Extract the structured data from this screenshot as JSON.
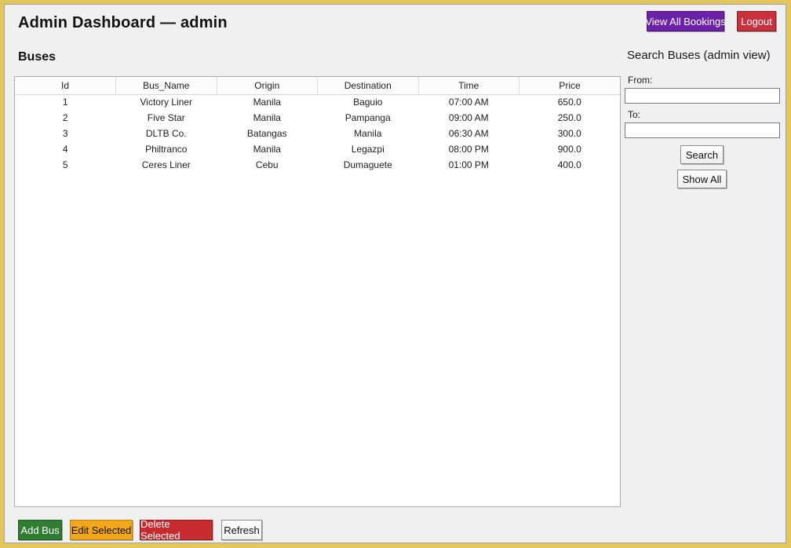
{
  "header": {
    "title": "Admin Dashboard — admin",
    "view_all_bookings_label": "View All Bookings",
    "logout_label": "Logout"
  },
  "main": {
    "section_title": "Buses",
    "table": {
      "columns": [
        "Id",
        "Bus_Name",
        "Origin",
        "Destination",
        "Time",
        "Price"
      ],
      "rows": [
        [
          "1",
          "Victory Liner",
          "Manila",
          "Baguio",
          "07:00 AM",
          "650.0"
        ],
        [
          "2",
          "Five Star",
          "Manila",
          "Pampanga",
          "09:00 AM",
          "250.0"
        ],
        [
          "3",
          "DLTB Co.",
          "Batangas",
          "Manila",
          "06:30 AM",
          "300.0"
        ],
        [
          "4",
          "Philtranco",
          "Manila",
          "Legazpi",
          "08:00 PM",
          "900.0"
        ],
        [
          "5",
          "Ceres Liner",
          "Cebu",
          "Dumaguete",
          "01:00 PM",
          "400.0"
        ]
      ]
    },
    "actions": {
      "add_bus_label": "Add Bus",
      "edit_selected_label": "Edit Selected",
      "delete_selected_label": "Delete Selected",
      "refresh_label": "Refresh"
    }
  },
  "sidebar": {
    "title": "Search Buses (admin view)",
    "from_label": "From:",
    "from_value": "",
    "to_label": "To:",
    "to_value": "",
    "search_label": "Search",
    "show_all_label": "Show All"
  },
  "colors": {
    "window_border_gold": "#E3C75C",
    "background_gray": "#F0F0F0",
    "view_all_bookings_purple": "#6B21A8",
    "logout_red": "#C9313C",
    "add_bus_green": "#2E7D32",
    "edit_selected_amber": "#F2A71B",
    "delete_selected_red": "#C72B2F"
  }
}
